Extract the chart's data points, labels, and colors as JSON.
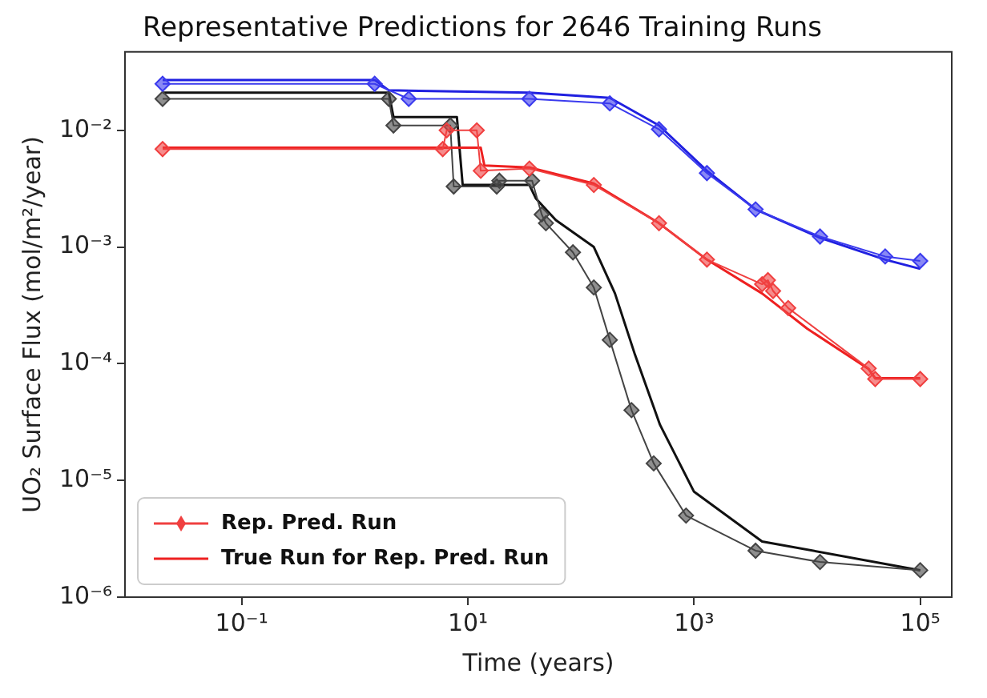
{
  "chart_data": {
    "type": "line",
    "title": "Representative Predictions for 2646 Training Runs",
    "xlabel": "Time (years)",
    "ylabel": "UO₂ Surface Flux (mol/m²/year)",
    "log": "xy",
    "xlim": [
      0.0093,
      190000
    ],
    "ylim": [
      1e-06,
      0.047
    ],
    "xticks": [
      {
        "value": 0.1,
        "label": "10⁻¹"
      },
      {
        "value": 10,
        "label": "10¹"
      },
      {
        "value": 1000,
        "label": "10³"
      },
      {
        "value": 100000,
        "label": "10⁵"
      }
    ],
    "yticks": [
      {
        "value": 1e-06,
        "label": "10⁻⁶"
      },
      {
        "value": 1e-05,
        "label": "10⁻⁵"
      },
      {
        "value": 0.0001,
        "label": "10⁻⁴"
      },
      {
        "value": 0.001,
        "label": "10⁻³"
      },
      {
        "value": 0.01,
        "label": "10⁻²"
      }
    ],
    "grid": false,
    "legend": "bottom left",
    "series": [
      {
        "color": "#3a3aee",
        "marker": "diamond",
        "x": [
          0.02,
          1.5,
          3,
          35,
          180,
          490,
          1300,
          3500,
          13000,
          49000,
          100000
        ],
        "values": [
          0.025,
          0.025,
          0.0186,
          0.0186,
          0.017,
          0.0102,
          0.0043,
          0.0021,
          0.00123,
          0.00083,
          0.00076
        ]
      },
      {
        "color": "#2020e0",
        "marker": "none",
        "x": [
          0.02,
          1.5,
          2,
          35,
          180,
          490,
          1300,
          3500,
          13000,
          49000,
          100000
        ],
        "values": [
          0.027,
          0.027,
          0.022,
          0.021,
          0.019,
          0.011,
          0.0045,
          0.0021,
          0.0012,
          0.00078,
          0.00065
        ]
      },
      {
        "name": "Rep. Pred. Run",
        "color": "#f04040",
        "marker": "diamond",
        "x": [
          0.02,
          6,
          6.5,
          12,
          13,
          35,
          130,
          490,
          1300,
          4000,
          4500,
          5000,
          6800,
          35000,
          40000,
          100000
        ],
        "values": [
          0.0069,
          0.0069,
          0.01,
          0.01,
          0.0045,
          0.0047,
          0.0034,
          0.0016,
          0.00078,
          0.00048,
          0.00052,
          0.00042,
          0.0003,
          9.1e-05,
          7.4e-05,
          7.4e-05
        ]
      },
      {
        "name": "True Run for Rep. Pred. Run",
        "color": "#ee2020",
        "marker": "none",
        "x": [
          0.02,
          13,
          14,
          35,
          130,
          490,
          1300,
          4000,
          10000,
          35000,
          40000,
          100000
        ],
        "values": [
          0.0071,
          0.0071,
          0.005,
          0.0048,
          0.0035,
          0.0016,
          0.00078,
          0.0004,
          0.0002,
          9e-05,
          7.5e-05,
          7.5e-05
        ]
      },
      {
        "color": "#444444",
        "marker": "diamond",
        "x": [
          0.02,
          2,
          2.2,
          7,
          7.5,
          18,
          19,
          37,
          45,
          49,
          85,
          130,
          180,
          280,
          440,
          850,
          3500,
          13000,
          100000
        ],
        "values": [
          0.0186,
          0.0186,
          0.011,
          0.011,
          0.0033,
          0.0033,
          0.0037,
          0.0037,
          0.0019,
          0.0016,
          0.0009,
          0.00045,
          0.00016,
          4e-05,
          1.4e-05,
          5e-06,
          2.5e-06,
          2e-06,
          1.7e-06
        ]
      },
      {
        "color": "#111111",
        "marker": "none",
        "x": [
          0.02,
          2,
          2.2,
          8,
          9,
          35,
          40,
          60,
          130,
          200,
          300,
          500,
          1000,
          4000,
          100000
        ],
        "values": [
          0.021,
          0.021,
          0.013,
          0.013,
          0.0034,
          0.0034,
          0.0026,
          0.0017,
          0.001,
          0.0004,
          0.00012,
          3e-05,
          8e-06,
          3e-06,
          1.7e-06
        ]
      }
    ]
  }
}
